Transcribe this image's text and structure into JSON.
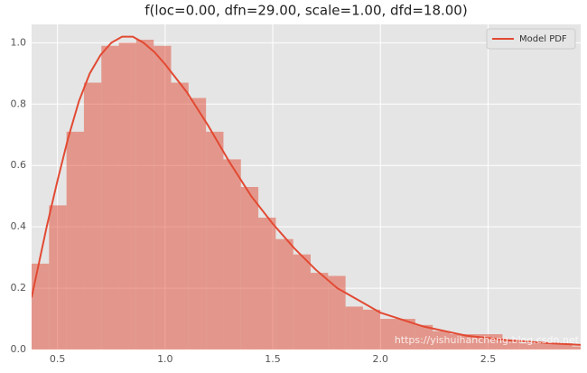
{
  "chart_data": {
    "type": "histogram",
    "title": "f(loc=0.00, dfn=29.00, scale=1.00, dfd=18.00)",
    "bins": [
      0.38,
      0.461,
      0.542,
      0.623,
      0.704,
      0.785,
      0.866,
      0.947,
      1.028,
      1.109,
      1.19,
      1.271,
      1.352,
      1.433,
      1.514,
      1.595,
      1.676,
      1.757,
      1.838,
      1.919,
      2.0,
      2.081,
      2.162,
      2.243,
      2.324,
      2.405,
      2.486,
      2.567,
      2.648,
      2.729,
      2.81,
      2.891,
      2.972
    ],
    "values": [
      0.28,
      0.47,
      0.71,
      0.87,
      0.99,
      1.0,
      1.01,
      0.99,
      0.87,
      0.82,
      0.71,
      0.62,
      0.53,
      0.43,
      0.36,
      0.31,
      0.25,
      0.24,
      0.14,
      0.13,
      0.1,
      0.1,
      0.08,
      0.06,
      0.05,
      0.05,
      0.05,
      0.03,
      0.02,
      0.02,
      0.02,
      0.01
    ],
    "color": "#E24A33",
    "series": [
      {
        "name": "Model PDF",
        "type": "line",
        "color": "#E24A33",
        "x": [
          0.38,
          0.45,
          0.5,
          0.55,
          0.6,
          0.65,
          0.7,
          0.75,
          0.8,
          0.85,
          0.9,
          0.95,
          1.0,
          1.1,
          1.2,
          1.3,
          1.4,
          1.5,
          1.6,
          1.7,
          1.8,
          1.9,
          2.0,
          2.2,
          2.4,
          2.6,
          2.8,
          2.93
        ],
        "values": [
          0.17,
          0.4,
          0.55,
          0.69,
          0.81,
          0.9,
          0.96,
          1.0,
          1.02,
          1.02,
          1.0,
          0.97,
          0.93,
          0.84,
          0.73,
          0.61,
          0.5,
          0.41,
          0.33,
          0.26,
          0.2,
          0.16,
          0.12,
          0.075,
          0.045,
          0.03,
          0.02,
          0.015
        ]
      }
    ],
    "xlim": [
      0.38,
      2.93
    ],
    "ylim": [
      0,
      1.06
    ],
    "xticks": [
      0.5,
      {
        "value": 1,
        "label": "1.0"
      },
      1.5,
      {
        "value": 2,
        "label": "2.0"
      },
      2.5
    ],
    "yticks": [
      {
        "value": 0,
        "label": "0.0"
      },
      0.2,
      0.4,
      0.6,
      0.8,
      {
        "value": 1,
        "label": "1.0"
      }
    ],
    "grid": true,
    "legend": "upper right",
    "watermark": "https://yishuihancheng.blog.csdn.net"
  }
}
